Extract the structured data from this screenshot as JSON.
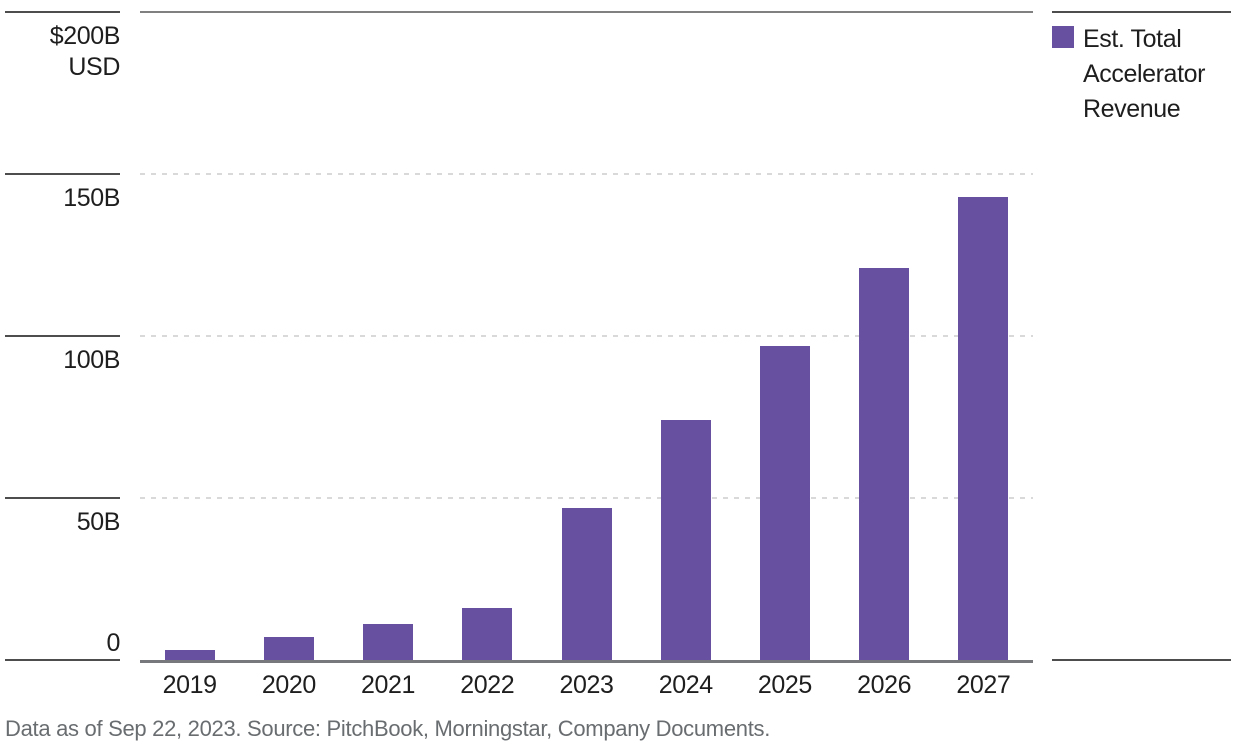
{
  "chart_data": {
    "type": "bar",
    "title": "",
    "categories": [
      "2019",
      "2020",
      "2021",
      "2022",
      "2023",
      "2024",
      "2025",
      "2026",
      "2027"
    ],
    "series": [
      {
        "name": "Est. Total Accelerator Revenue",
        "values": [
          3,
          7,
          11,
          16,
          47,
          74,
          97,
          121,
          143
        ]
      }
    ],
    "unit": "USD billions",
    "ylim": [
      0,
      200
    ],
    "yticks": [
      {
        "value": 200,
        "label": "$200B",
        "sublabel": "USD"
      },
      {
        "value": 150,
        "label": "150B"
      },
      {
        "value": 100,
        "label": "100B"
      },
      {
        "value": 50,
        "label": "50B"
      },
      {
        "value": 0,
        "label": "0"
      }
    ],
    "xlabel": "",
    "ylabel": "$200B USD",
    "grid": "horizontal-dashed",
    "legend_position": "right"
  },
  "legend": {
    "label": "Est. Total Accelerator Revenue",
    "lines": [
      "Est. Total",
      "Accelerator",
      "Revenue"
    ],
    "swatch_color": "#67509f"
  },
  "footer": {
    "text": "Data as of Sep 22, 2023. Source: PitchBook, Morningstar, Company Documents."
  },
  "colors": {
    "bar": "#67509f",
    "axis_baseline": "#77787b",
    "top_rule": "#808080",
    "tick_rule": "#4d4d4d",
    "gridline": "#d9d9d9",
    "text": "#1e1e1e",
    "muted_text": "#696d70"
  }
}
